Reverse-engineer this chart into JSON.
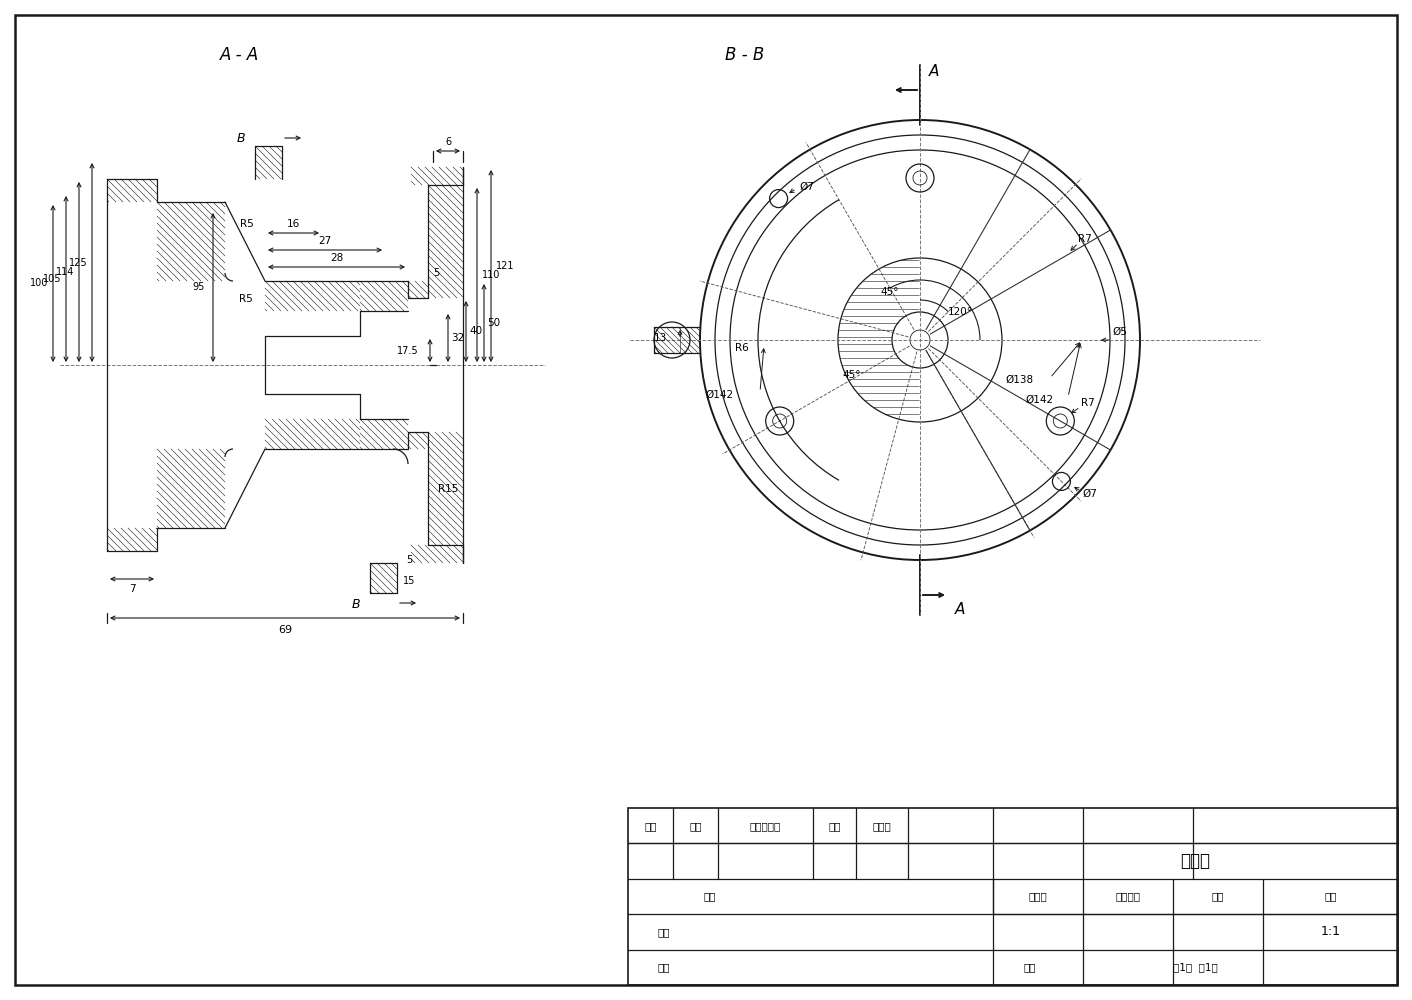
{
  "bg": "#ffffff",
  "lc": "#1a1a1a",
  "section_AA": "A - A",
  "section_BB": "B - B",
  "title": "连接座",
  "scale": "1:1",
  "page": "第1张  共1张",
  "label_biaoji": "标记",
  "label_chushu": "处数",
  "label_gengwei": "更改文件号",
  "label_qianzi": "签字",
  "label_nianyueri": "年月日",
  "label_sheji": "设计",
  "label_biaozhunhua": "标准化",
  "label_shenhe": "审核",
  "label_pizhun": "批准",
  "label_gongyi": "工艺",
  "label_jieduan": "阶段标记",
  "label_zhongliang": "重量",
  "label_bili": "比例"
}
